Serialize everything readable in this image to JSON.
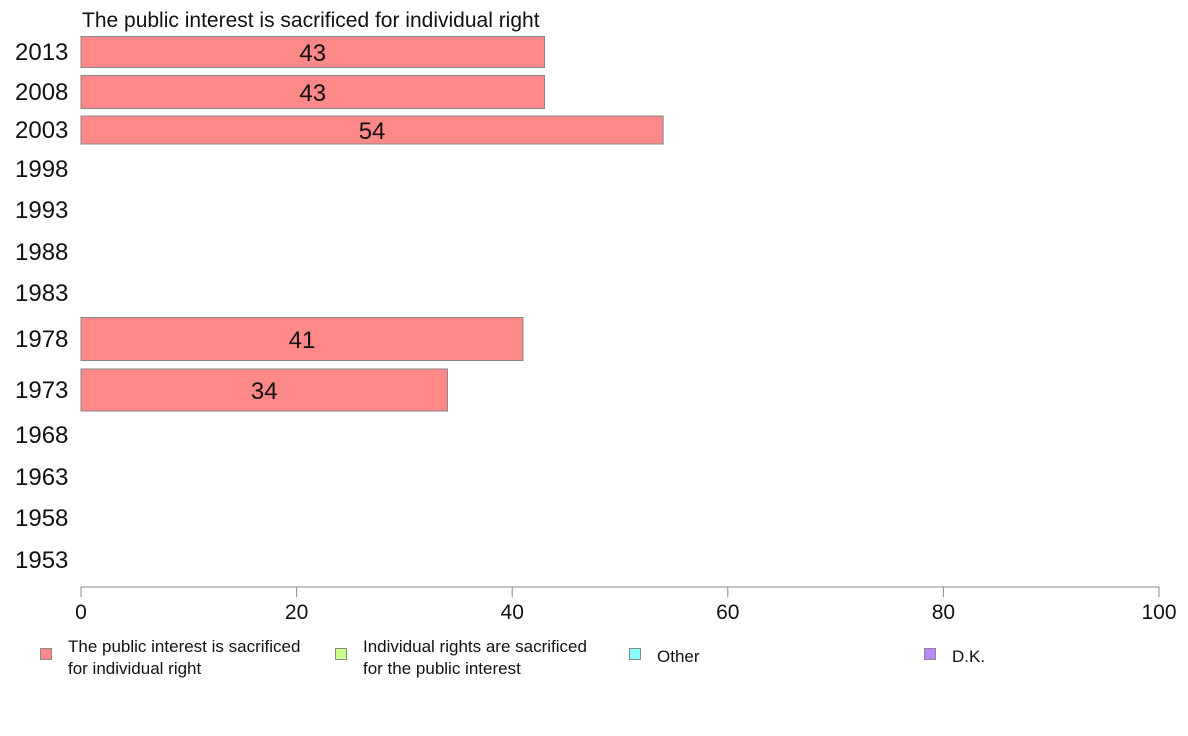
{
  "chart_data": {
    "type": "bar",
    "orientation": "horizontal",
    "title": "The public interest is sacrificed for individual right",
    "categories": [
      "2013",
      "2008",
      "2003",
      "1998",
      "1993",
      "1988",
      "1983",
      "1978",
      "1973",
      "1968",
      "1963",
      "1958",
      "1953"
    ],
    "series": [
      {
        "name": "The public interest is sacrificed for individual right",
        "color": "#ff8888",
        "values": [
          43,
          43,
          54,
          null,
          null,
          null,
          null,
          41,
          34,
          null,
          null,
          null,
          null
        ]
      }
    ],
    "xlim": [
      0,
      100
    ],
    "xticks": [
      "0",
      "20",
      "40",
      "60",
      "80",
      "100"
    ],
    "grid": false,
    "legend_position": "bottom"
  },
  "legend": [
    {
      "label": "The public interest is sacrificed\nfor individual right",
      "color": "#ff8888"
    },
    {
      "label": "Individual rights are sacrificed\nfor the public interest",
      "color": "#ccff88"
    },
    {
      "label": "Other",
      "color": "#88ffff"
    },
    {
      "label": "D.K.",
      "color": "#bb88ff"
    }
  ]
}
